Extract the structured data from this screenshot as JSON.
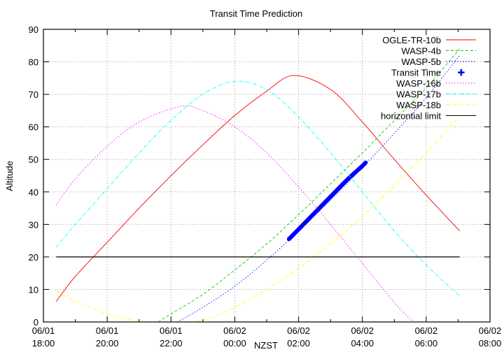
{
  "chart_data": {
    "type": "line",
    "title": "Transit Time Prediction",
    "xlabel": "NZST",
    "ylabel": "Altitude",
    "ylim": [
      0,
      90
    ],
    "yticks": [
      0,
      10,
      20,
      30,
      40,
      50,
      60,
      70,
      80,
      90
    ],
    "xlim_hours_from_0601_1800": [
      0,
      14
    ],
    "xticks": [
      {
        "h": 0,
        "date": "06/01",
        "time": "18:00"
      },
      {
        "h": 2,
        "date": "06/01",
        "time": "20:00"
      },
      {
        "h": 4,
        "date": "06/01",
        "time": "22:00"
      },
      {
        "h": 6,
        "date": "06/02",
        "time": "00:00"
      },
      {
        "h": 8,
        "date": "06/02",
        "time": "02:00"
      },
      {
        "h": 10,
        "date": "06/02",
        "time": "04:00"
      },
      {
        "h": 12,
        "date": "06/02",
        "time": "06:00"
      },
      {
        "h": 14,
        "date": "06/02",
        "time": "08:00"
      }
    ],
    "grid": true,
    "legend_position": "top-right-inside",
    "series": [
      {
        "name": "OGLE-TR-10b",
        "color": "#ff0000",
        "style": "solid",
        "x": [
          0.4,
          1,
          2,
          3,
          4,
          5,
          6,
          7,
          7.85,
          9,
          10,
          11,
          12,
          13.05
        ],
        "y": [
          6.3,
          14,
          24.5,
          35,
          45,
          54.5,
          63.5,
          71,
          75.8,
          71.5,
          61.5,
          50,
          39,
          28
        ]
      },
      {
        "name": "WASP-4b",
        "color": "#00cc00",
        "style": "dashed",
        "x": [
          3.6,
          4,
          5,
          6,
          7,
          8,
          9,
          10,
          11,
          12,
          13.05
        ],
        "y": [
          0,
          2.5,
          8.5,
          16,
          24,
          33,
          42.5,
          52,
          62,
          72,
          84
        ]
      },
      {
        "name": "WASP-5b",
        "color": "#0000ff",
        "style": "dotted",
        "x": [
          4.2,
          5,
          6,
          7,
          8,
          9,
          10,
          11,
          12,
          13.05
        ],
        "y": [
          0,
          4.5,
          11,
          19,
          28,
          37.5,
          47.5,
          58,
          69,
          82
        ]
      },
      {
        "name": "Transit Time",
        "color": "#0000ff",
        "style": "points",
        "x": [
          7.7,
          8,
          8.5,
          9,
          9.5,
          10,
          10.1
        ],
        "y": [
          25.5,
          28.5,
          33.5,
          38.5,
          43.5,
          48,
          49
        ]
      },
      {
        "name": "WASP-16b",
        "color": "#ff00ff",
        "style": "dotted",
        "x": [
          0.4,
          1,
          2,
          3,
          4.3,
          5,
          6,
          7,
          8,
          9,
          10,
          11,
          11.6
        ],
        "y": [
          36,
          44,
          54,
          61.5,
          66.3,
          65,
          60,
          52,
          41.5,
          30,
          18,
          6,
          0
        ]
      },
      {
        "name": "WASP-17b",
        "color": "#00ffff",
        "style": "dash-dot",
        "x": [
          0.4,
          1,
          2,
          3,
          4,
          5,
          6,
          7,
          8,
          9,
          10,
          11,
          12,
          13.05
        ],
        "y": [
          23,
          30,
          41,
          52,
          62,
          70,
          74,
          71.5,
          63,
          52,
          40,
          28,
          17.5,
          8
        ]
      },
      {
        "name": "WASP-18b",
        "color": "#ffff00",
        "style": "dash-dot",
        "x": [
          0.4,
          1,
          2,
          3,
          4,
          5,
          6,
          7,
          8,
          9,
          10,
          11,
          12,
          13.05
        ],
        "y": [
          9.5,
          6.5,
          2.5,
          0.2,
          0,
          0.5,
          4.5,
          10,
          16.5,
          24,
          32.5,
          42,
          52,
          63.5
        ]
      },
      {
        "name": "horizontial limit",
        "color": "#000000",
        "style": "solid",
        "x": [
          0.4,
          13.05
        ],
        "y": [
          20,
          20
        ]
      }
    ]
  }
}
